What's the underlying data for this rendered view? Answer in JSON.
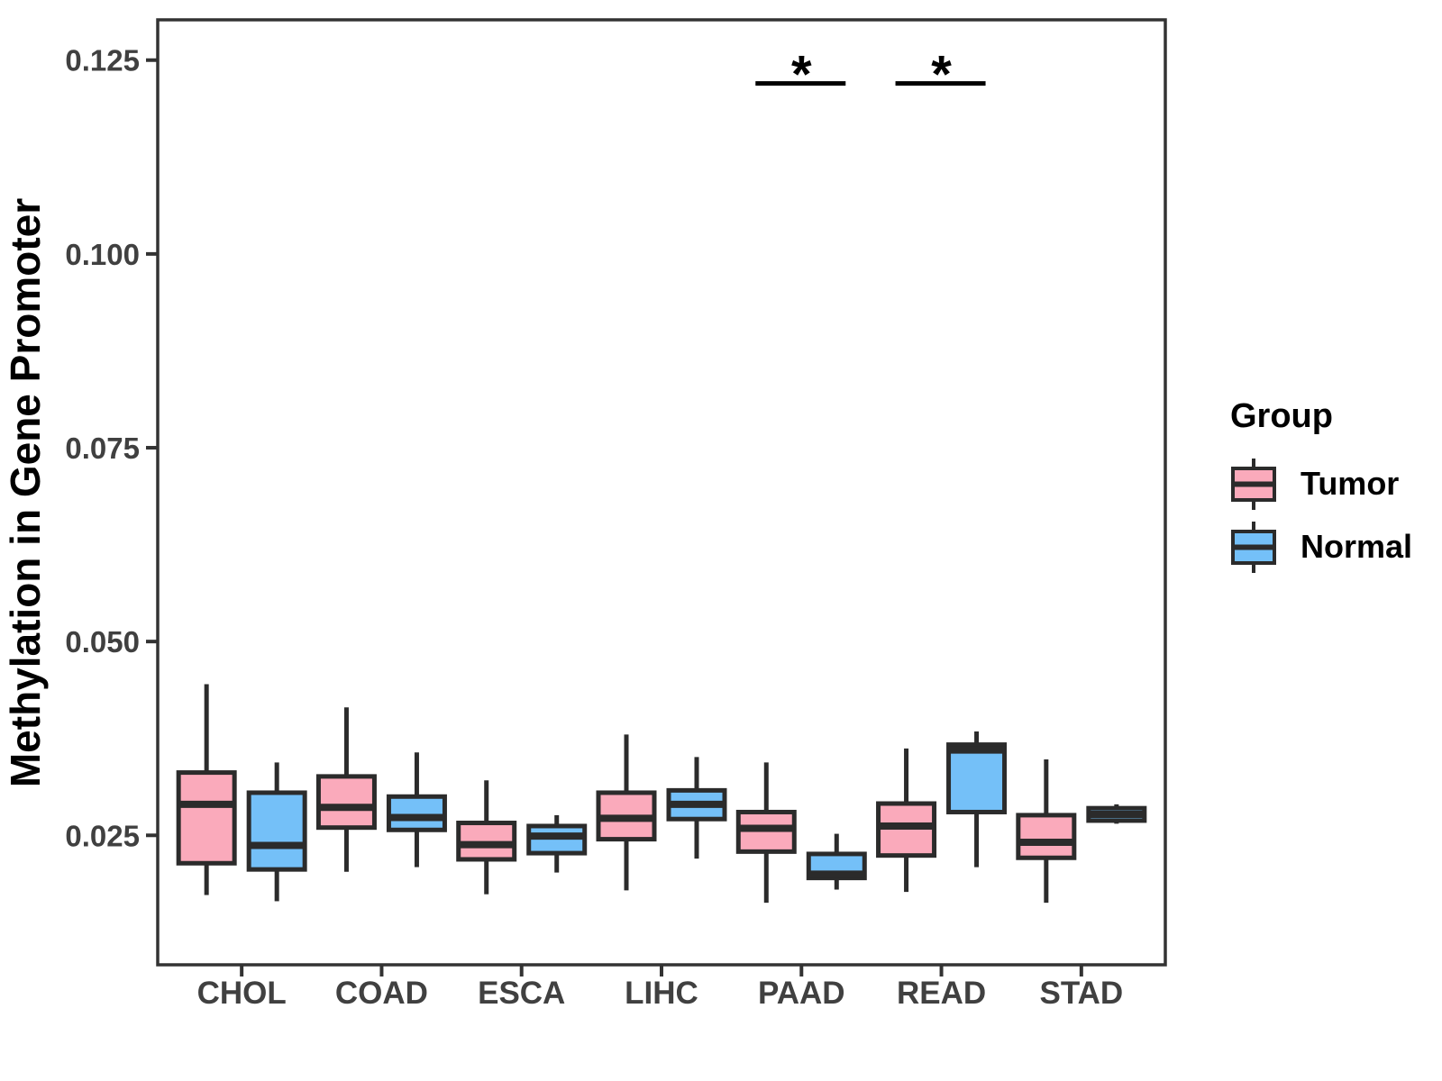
{
  "chart_data": {
    "type": "grouped_boxplot",
    "title": "",
    "xlabel": "",
    "ylabel": "Methylation in Gene Promoter",
    "categories": [
      "CHOL",
      "COAD",
      "ESCA",
      "LIHC",
      "PAAD",
      "READ",
      "STAD"
    ],
    "yticks": [
      0.025,
      0.05,
      0.075,
      0.1,
      0.125
    ],
    "ytick_labels": [
      "0.025",
      "0.050",
      "0.075",
      "0.100",
      "0.125"
    ],
    "ylim": [
      0.0083,
      0.1302
    ],
    "grid": false,
    "legend": {
      "title": "Group",
      "position": "right"
    },
    "colors": {
      "box_stroke": "#2B2B2B",
      "panel_border": "#333333",
      "tick_color": "#333333",
      "tick_label_color": "#404040",
      "significance_color": "#000000"
    },
    "series": [
      {
        "name": "Tumor",
        "fill": "#FAAABB",
        "boxes": [
          {
            "category": "CHOL",
            "min": 0.0173,
            "q1": 0.0214,
            "median": 0.029,
            "q3": 0.0331,
            "max": 0.0445
          },
          {
            "category": "COAD",
            "min": 0.0203,
            "q1": 0.026,
            "median": 0.0286,
            "q3": 0.0326,
            "max": 0.0415
          },
          {
            "category": "ESCA",
            "min": 0.0174,
            "q1": 0.0219,
            "median": 0.0238,
            "q3": 0.0266,
            "max": 0.0321
          },
          {
            "category": "LIHC",
            "min": 0.0179,
            "q1": 0.0245,
            "median": 0.0272,
            "q3": 0.0305,
            "max": 0.038
          },
          {
            "category": "PAAD",
            "min": 0.0163,
            "q1": 0.0229,
            "median": 0.0259,
            "q3": 0.028,
            "max": 0.0344
          },
          {
            "category": "READ",
            "min": 0.0177,
            "q1": 0.0224,
            "median": 0.0262,
            "q3": 0.0291,
            "max": 0.0362
          },
          {
            "category": "STAD",
            "min": 0.0163,
            "q1": 0.0221,
            "median": 0.0241,
            "q3": 0.0276,
            "max": 0.0348
          }
        ]
      },
      {
        "name": "Normal",
        "fill": "#74C0F8",
        "boxes": [
          {
            "category": "CHOL",
            "min": 0.0165,
            "q1": 0.0206,
            "median": 0.0237,
            "q3": 0.0305,
            "max": 0.0344
          },
          {
            "category": "COAD",
            "min": 0.0209,
            "q1": 0.0257,
            "median": 0.0273,
            "q3": 0.03,
            "max": 0.0357
          },
          {
            "category": "ESCA",
            "min": 0.0202,
            "q1": 0.0227,
            "median": 0.0249,
            "q3": 0.0262,
            "max": 0.0276
          },
          {
            "category": "LIHC",
            "min": 0.022,
            "q1": 0.0271,
            "median": 0.029,
            "q3": 0.0308,
            "max": 0.0351
          },
          {
            "category": "PAAD",
            "min": 0.018,
            "q1": 0.0195,
            "median": 0.02,
            "q3": 0.0226,
            "max": 0.0252
          },
          {
            "category": "READ",
            "min": 0.0209,
            "q1": 0.028,
            "median": 0.036,
            "q3": 0.0367,
            "max": 0.0384
          },
          {
            "category": "STAD",
            "min": 0.0265,
            "q1": 0.0269,
            "median": 0.0277,
            "q3": 0.0285,
            "max": 0.029
          }
        ]
      }
    ],
    "significance": [
      {
        "category": "PAAD",
        "label": "*",
        "y": 0.122
      },
      {
        "category": "READ",
        "label": "*",
        "y": 0.122
      }
    ]
  }
}
